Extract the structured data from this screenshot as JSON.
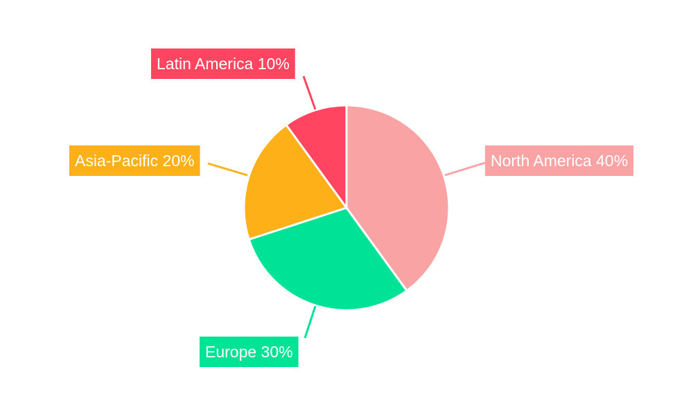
{
  "chart_data": {
    "type": "pie",
    "title": "",
    "start_angle_deg": 0,
    "direction": "clockwise",
    "categories": [
      "North America",
      "Europe",
      "Asia-Pacific",
      "Latin America"
    ],
    "values": [
      40,
      30,
      20,
      10
    ],
    "unit": "%",
    "labels": [
      "North America 40%",
      "Europe 30%",
      "Asia-Pacific 20%",
      "Latin America 10%"
    ],
    "colors": [
      "#F9A3A4",
      "#00E396",
      "#FEB019",
      "#FF4560"
    ],
    "label_placement": "outside with leader lines",
    "legend": "none"
  }
}
